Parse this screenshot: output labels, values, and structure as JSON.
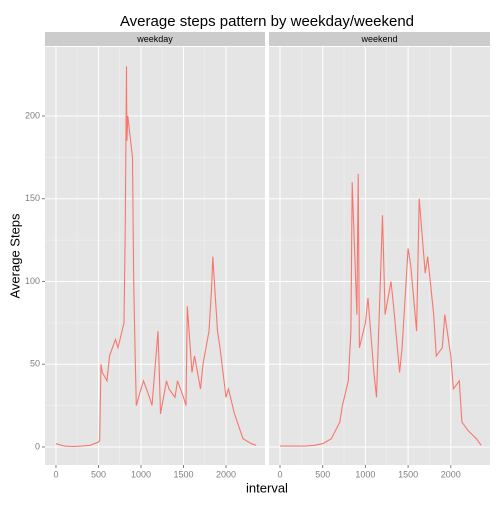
{
  "chart_data": {
    "type": "line",
    "title": "Average steps pattern by weekday/weekend",
    "xlabel": "interval",
    "ylabel": "Average Steps",
    "color": "#f8766d",
    "grid": true,
    "xlim": [
      -129,
      2459
    ],
    "ylim": [
      -10.9,
      241.7
    ],
    "xticks": [
      0,
      500,
      1000,
      1500,
      2000
    ],
    "yticks": [
      0,
      50,
      100,
      150,
      200
    ],
    "panels": [
      {
        "name": "weekday",
        "x": [
          0,
          100,
          200,
          300,
          400,
          500,
          515,
          530,
          545,
          600,
          630,
          700,
          730,
          800,
          815,
          830,
          835,
          845,
          900,
          915,
          930,
          945,
          1000,
          1030,
          1100,
          1130,
          1200,
          1215,
          1230,
          1300,
          1330,
          1400,
          1430,
          1500,
          1530,
          1545,
          1600,
          1630,
          1700,
          1730,
          1800,
          1830,
          1845,
          1900,
          1930,
          2000,
          2030,
          2100,
          2200,
          2300,
          2355
        ],
        "values": [
          2,
          0.5,
          0.3,
          0.5,
          1,
          3,
          4,
          50,
          45,
          40,
          55,
          65,
          60,
          75,
          130,
          230,
          185,
          200,
          175,
          100,
          60,
          25,
          35,
          40,
          30,
          25,
          70,
          45,
          20,
          40,
          35,
          30,
          40,
          30,
          25,
          85,
          45,
          55,
          35,
          50,
          70,
          95,
          115,
          70,
          60,
          30,
          35,
          20,
          5,
          2,
          1
        ]
      },
      {
        "name": "weekend",
        "x": [
          0,
          100,
          200,
          300,
          400,
          500,
          600,
          700,
          730,
          800,
          830,
          845,
          900,
          915,
          930,
          1000,
          1030,
          1100,
          1130,
          1200,
          1230,
          1300,
          1330,
          1400,
          1430,
          1500,
          1530,
          1600,
          1630,
          1700,
          1730,
          1800,
          1830,
          1900,
          1930,
          2000,
          2030,
          2100,
          2130,
          2200,
          2300,
          2355
        ],
        "values": [
          0.5,
          0.5,
          0.5,
          0.5,
          1,
          2,
          5,
          15,
          25,
          40,
          70,
          160,
          80,
          165,
          60,
          75,
          90,
          45,
          30,
          140,
          80,
          100,
          85,
          45,
          60,
          120,
          110,
          70,
          150,
          105,
          115,
          80,
          55,
          60,
          80,
          55,
          35,
          40,
          15,
          10,
          5,
          1
        ]
      }
    ]
  }
}
